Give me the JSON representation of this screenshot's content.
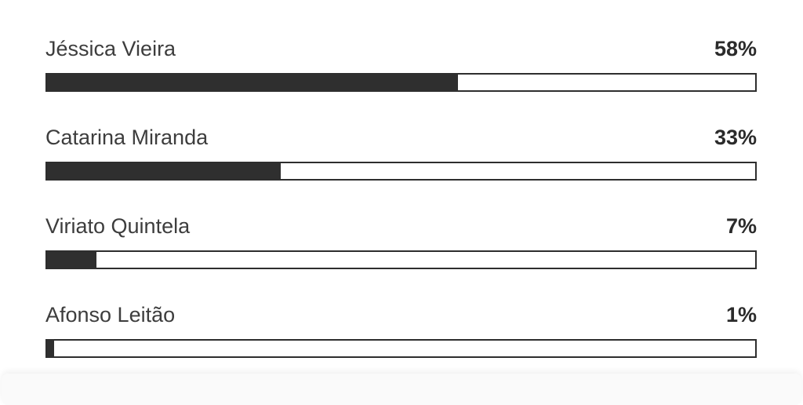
{
  "poll": {
    "options": [
      {
        "name": "Jéssica Vieira",
        "percent_label": "58%",
        "percent": 58
      },
      {
        "name": "Catarina Miranda",
        "percent_label": "33%",
        "percent": 33
      },
      {
        "name": "Viriato Quintela",
        "percent_label": "7%",
        "percent": 7
      },
      {
        "name": "Afonso Leitão",
        "percent_label": "1%",
        "percent": 1
      }
    ]
  },
  "colors": {
    "bar_fill": "#2f2f2f",
    "bar_border": "#2e2e2e"
  }
}
